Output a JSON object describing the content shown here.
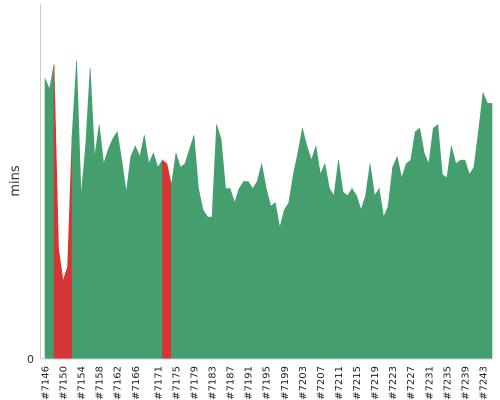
{
  "chart_data": {
    "type": "area",
    "title": "",
    "xlabel": "",
    "ylabel": "mins",
    "ylim": [
      0,
      100
    ],
    "y_ticks": [
      "0"
    ],
    "grid": false,
    "legend": "none",
    "colors": {
      "pass": "#459E6E",
      "fail": "#D63535"
    },
    "x_tick_labels": [
      "#7146",
      "#7150",
      "#7154",
      "#7158",
      "#7162",
      "#7166",
      "#7171",
      "#7175",
      "#7179",
      "#7183",
      "#7187",
      "#7191",
      "#7195",
      "#7199",
      "#7203",
      "#7207",
      "#7211",
      "#7215",
      "#7219",
      "#7223",
      "#7227",
      "#7231",
      "#7235",
      "#7239",
      "#7243"
    ],
    "x": [
      7146,
      7147,
      7148,
      7149,
      7150,
      7151,
      7152,
      7153,
      7154,
      7155,
      7156,
      7157,
      7158,
      7159,
      7160,
      7161,
      7162,
      7163,
      7164,
      7165,
      7166,
      7167,
      7168,
      7169,
      7170,
      7171,
      7172,
      7173,
      7174,
      7175,
      7176,
      7177,
      7178,
      7179,
      7180,
      7181,
      7182,
      7183,
      7184,
      7185,
      7186,
      7187,
      7188,
      7189,
      7190,
      7191,
      7192,
      7193,
      7194,
      7195,
      7196,
      7197,
      7198,
      7199,
      7200,
      7201,
      7202,
      7203,
      7204,
      7205,
      7206,
      7207,
      7208,
      7209,
      7210,
      7211,
      7212,
      7213,
      7214,
      7215,
      7216,
      7217,
      7218,
      7219,
      7220,
      7221,
      7222,
      7223,
      7224,
      7225,
      7226,
      7227,
      7228,
      7229,
      7230,
      7231,
      7232,
      7233,
      7234,
      7235,
      7236,
      7237,
      7238,
      7239,
      7240,
      7241,
      7242,
      7243,
      7244,
      7245
    ],
    "values": [
      79,
      76,
      83,
      31,
      22,
      26,
      63,
      84,
      46,
      60,
      82,
      57,
      66,
      55,
      59,
      62,
      64,
      56,
      47,
      57,
      60,
      57,
      63,
      55,
      58,
      54,
      56,
      55,
      49,
      58,
      54,
      55,
      59,
      63,
      48,
      42,
      40,
      40,
      66,
      62,
      48,
      48,
      44,
      48,
      50,
      50,
      48,
      50,
      55,
      48,
      43,
      44,
      37,
      42,
      44,
      52,
      58,
      65,
      60,
      56,
      60,
      52,
      55,
      48,
      46,
      56,
      47,
      46,
      48,
      46,
      42,
      46,
      55,
      46,
      48,
      40,
      43,
      54,
      57,
      51,
      55,
      56,
      64,
      65,
      58,
      55,
      65,
      66,
      52,
      51,
      60,
      55,
      56,
      56,
      52,
      54,
      64,
      75,
      72,
      72
    ],
    "status": [
      "pass",
      "pass",
      "pass",
      "fail",
      "fail",
      "fail",
      "pass",
      "pass",
      "pass",
      "pass",
      "pass",
      "pass",
      "pass",
      "pass",
      "pass",
      "pass",
      "pass",
      "pass",
      "pass",
      "pass",
      "pass",
      "pass",
      "pass",
      "pass",
      "pass",
      "pass",
      "pass",
      "fail",
      "pass",
      "pass",
      "pass",
      "pass",
      "pass",
      "pass",
      "pass",
      "pass",
      "pass",
      "pass",
      "pass",
      "pass",
      "pass",
      "pass",
      "pass",
      "pass",
      "pass",
      "pass",
      "pass",
      "pass",
      "pass",
      "pass",
      "pass",
      "pass",
      "pass",
      "pass",
      "pass",
      "pass",
      "pass",
      "pass",
      "pass",
      "pass",
      "pass",
      "pass",
      "pass",
      "pass",
      "pass",
      "pass",
      "pass",
      "pass",
      "pass",
      "pass",
      "pass",
      "pass",
      "pass",
      "pass",
      "pass",
      "pass",
      "pass",
      "pass",
      "pass",
      "pass",
      "pass",
      "pass",
      "pass",
      "pass",
      "pass",
      "pass",
      "pass",
      "pass",
      "pass",
      "pass",
      "pass",
      "pass",
      "pass",
      "pass",
      "pass",
      "pass",
      "pass",
      "pass",
      "pass",
      "pass"
    ]
  }
}
